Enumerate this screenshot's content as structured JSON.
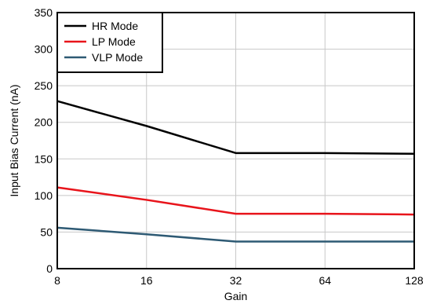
{
  "chart_data": {
    "type": "line",
    "xlabel": "Gain",
    "ylabel": "Input Bias Current (nA)",
    "x_scale": "log2",
    "x": [
      8,
      16,
      32,
      64,
      128
    ],
    "xticks": [
      "8",
      "16",
      "32",
      "64",
      "128"
    ],
    "ylim": [
      0,
      350
    ],
    "yticks": [
      0,
      50,
      100,
      150,
      200,
      250,
      300,
      350
    ],
    "grid": true,
    "legend_position": "top-left",
    "series": [
      {
        "name": "HR Mode",
        "color": "#000000",
        "values": [
          229,
          195,
          158,
          158,
          157
        ]
      },
      {
        "name": "LP Mode",
        "color": "#e8141b",
        "values": [
          111,
          94,
          75,
          75,
          74
        ]
      },
      {
        "name": "VLP Mode",
        "color": "#2e5a74",
        "values": [
          56,
          47,
          37,
          37,
          37
        ]
      }
    ]
  }
}
